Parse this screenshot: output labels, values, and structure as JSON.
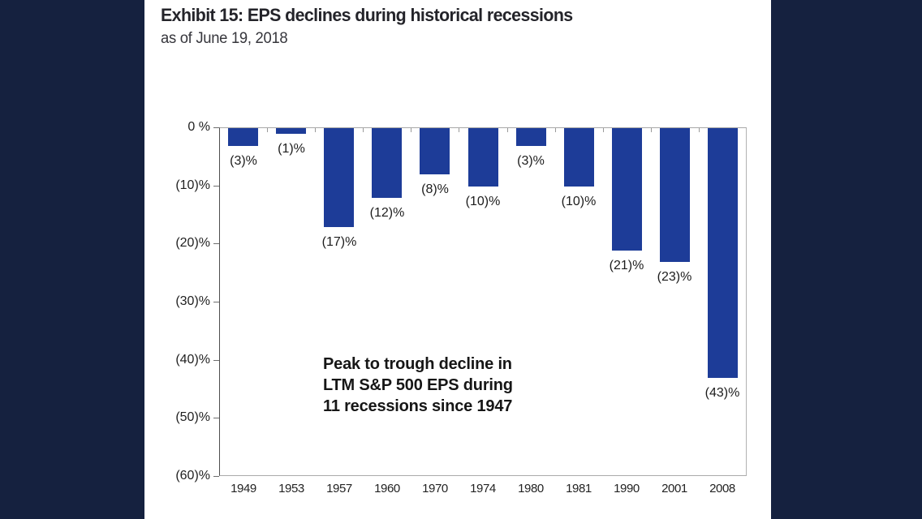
{
  "header": {
    "title": "Exhibit 15: EPS declines during historical recessions",
    "subtitle": "as of June 19, 2018"
  },
  "chart_data": {
    "type": "bar",
    "title": "Exhibit 15: EPS declines during historical recessions",
    "subtitle": "as of June 19, 2018",
    "categories": [
      "1949",
      "1953",
      "1957",
      "1960",
      "1970",
      "1974",
      "1980",
      "1981",
      "1990",
      "2001",
      "2008"
    ],
    "values": [
      -3,
      -1,
      -17,
      -12,
      -8,
      -10,
      -3,
      -10,
      -21,
      -23,
      -43
    ],
    "value_labels": [
      "(3)%",
      "(1)%",
      "(17)%",
      "(12)%",
      "(8)%",
      "(10)%",
      "(3)%",
      "(10)%",
      "(21)%",
      "(23)%",
      "(43)%"
    ],
    "y_ticks": [
      "0 %",
      "(10)%",
      "(20)%",
      "(30)%",
      "(40)%",
      "(50)%",
      "(60)%"
    ],
    "y_tick_values": [
      0,
      -10,
      -20,
      -30,
      -40,
      -50,
      -60
    ],
    "ylim": [
      -60,
      0
    ],
    "xlabel": "",
    "ylabel": "",
    "grid": false,
    "legend": "none",
    "annotation_lines": [
      "Peak to trough decline in",
      "LTM S&P 500 EPS during",
      "11 recessions since 1947"
    ]
  },
  "colors": {
    "background": "#15213F",
    "panel": "#FFFFFF",
    "bar": "#1D3C98",
    "axis_line_left": "#4E4E4E",
    "axis_line_gray": "#ABABAB",
    "text": "#232323"
  }
}
